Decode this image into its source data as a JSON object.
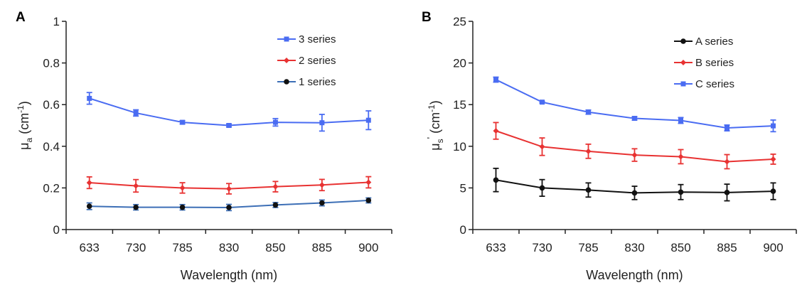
{
  "chart_data": [
    {
      "panel_label": "A",
      "type": "line",
      "categories": [
        "633",
        "730",
        "785",
        "830",
        "850",
        "885",
        "900"
      ],
      "xlabel": "Wavelength (nm)",
      "ylabel": {
        "base": "μ",
        "sub": "a",
        "unit_pre": " (cm",
        "unit_sup": "-1",
        "unit_post": ")"
      },
      "ylim": [
        0,
        1
      ],
      "yticks": [
        0,
        0.2,
        0.4,
        0.6,
        0.8,
        1
      ],
      "yticklabels": [
        "0",
        "0.2",
        "0.4",
        "0.6",
        "0.8",
        "1"
      ],
      "legend_position": "top-right",
      "error_bars": true,
      "series": [
        {
          "name": "3 series",
          "color": "#4a6cf2",
          "marker": "square",
          "values": [
            0.63,
            0.56,
            0.515,
            0.5,
            0.515,
            0.513,
            0.525
          ],
          "errors": [
            0.028,
            0.015,
            0.008,
            0.007,
            0.018,
            0.04,
            0.045
          ]
        },
        {
          "name": "2 series",
          "color": "#e83232",
          "marker": "diamond",
          "values": [
            0.225,
            0.21,
            0.2,
            0.196,
            0.206,
            0.214,
            0.227
          ],
          "errors": [
            0.028,
            0.03,
            0.025,
            0.025,
            0.025,
            0.027,
            0.027
          ]
        },
        {
          "name": "1 series",
          "color": "#3d6fb6",
          "marker": "circle",
          "values": [
            0.112,
            0.107,
            0.107,
            0.106,
            0.118,
            0.128,
            0.14
          ],
          "errors": [
            0.016,
            0.013,
            0.013,
            0.015,
            0.012,
            0.014,
            0.012
          ]
        }
      ]
    },
    {
      "panel_label": "B",
      "type": "line",
      "categories": [
        "633",
        "730",
        "785",
        "830",
        "850",
        "885",
        "900"
      ],
      "xlabel": "Wavelength (nm)",
      "ylabel": {
        "base": "μ",
        "sub": "s",
        "prime": "'",
        "unit_pre": " (cm",
        "unit_sup": "-1",
        "unit_post": ")"
      },
      "ylim": [
        0,
        25
      ],
      "yticks": [
        0,
        5,
        10,
        15,
        20,
        25
      ],
      "yticklabels": [
        "0",
        "5",
        "10",
        "15",
        "20",
        "25"
      ],
      "legend_position": "top-right",
      "error_bars": true,
      "series": [
        {
          "name": "A series",
          "color": "#111111",
          "marker": "circle",
          "values": [
            5.95,
            5.0,
            4.75,
            4.4,
            4.5,
            4.45,
            4.6
          ],
          "errors": [
            1.4,
            1.0,
            0.85,
            0.8,
            0.9,
            1.0,
            1.0
          ]
        },
        {
          "name": "B series",
          "color": "#e83232",
          "marker": "diamond",
          "values": [
            11.85,
            9.95,
            9.4,
            8.95,
            8.75,
            8.15,
            8.45
          ],
          "errors": [
            1.0,
            1.05,
            0.85,
            0.75,
            0.85,
            0.85,
            0.6
          ]
        },
        {
          "name": "C series",
          "color": "#4a6cf2",
          "marker": "square",
          "values": [
            18.0,
            15.3,
            14.1,
            13.35,
            13.1,
            12.2,
            12.45
          ],
          "errors": [
            0.3,
            0.1,
            0.25,
            0.2,
            0.35,
            0.35,
            0.7
          ]
        }
      ]
    }
  ]
}
